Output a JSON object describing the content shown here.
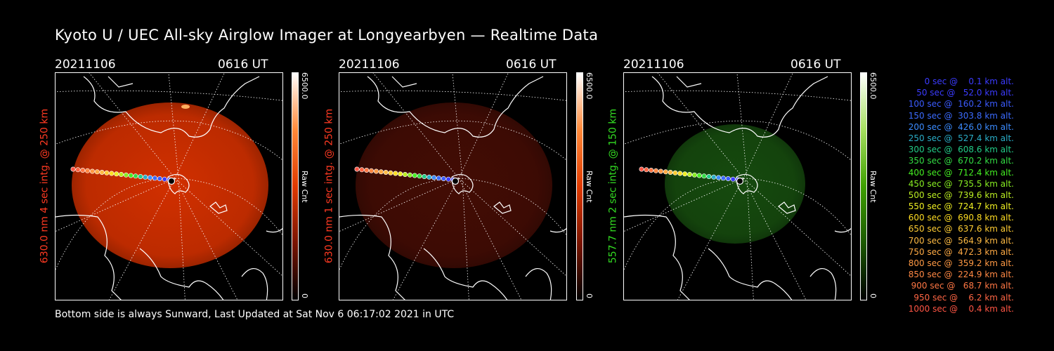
{
  "title": "Kyoto U / UEC All-sky Airglow Imager at Longyearbyen — Realtime Data",
  "panels": [
    {
      "date": "20211106",
      "time": "0616 UT",
      "ylabel": "630.0 nm 4 sec intg. @ 250 km",
      "label_color": "#ff3a22",
      "glow_color": "#ff3a00",
      "glow_opacity": 0.82,
      "colorbar_max": "6500.0",
      "colorbar_min": "0",
      "colorbar_unit": "Raw Cnt",
      "colorbar_colors": [
        "#000000",
        "#7a1400",
        "#e03a00",
        "#ff8a3a",
        "#ffffff"
      ]
    },
    {
      "date": "20211106",
      "time": "0616 UT",
      "ylabel": "630.0 nm 1 sec intg. @ 250 km",
      "label_color": "#ff3a22",
      "glow_color": "#7a1608",
      "glow_opacity": 0.55,
      "colorbar_max": "6500.0",
      "colorbar_min": "0",
      "colorbar_unit": "Raw Cnt",
      "colorbar_colors": [
        "#000000",
        "#7a1400",
        "#e03a00",
        "#ff8a3a",
        "#ffffff"
      ]
    },
    {
      "date": "20211106",
      "time": "0616 UT",
      "ylabel": "557.7 nm 2 sec intg. @ 150 km",
      "label_color": "#33dd22",
      "glow_color": "#1f6a14",
      "glow_opacity": 0.7,
      "colorbar_max": "6500.0",
      "colorbar_min": "0",
      "colorbar_unit": "Raw Cnt",
      "colorbar_colors": [
        "#000000",
        "#1c5a00",
        "#3fa000",
        "#a6e060",
        "#ffffff"
      ]
    }
  ],
  "footer": "Bottom side is always Sunward, Last Updated at Sat Nov  6 06:17:02 2021 in UTC",
  "legend": [
    {
      "text": "   0 sec @    0.1 km alt.",
      "color": "#3b3bff"
    },
    {
      "text": "  50 sec @   52.0 km alt.",
      "color": "#3b3bff"
    },
    {
      "text": " 100 sec @  160.2 km alt.",
      "color": "#3b5bff"
    },
    {
      "text": " 150 sec @  303.8 km alt.",
      "color": "#3b6bff"
    },
    {
      "text": " 200 sec @  426.0 km alt.",
      "color": "#3b8bff"
    },
    {
      "text": " 250 sec @  527.4 km alt.",
      "color": "#2aaec8"
    },
    {
      "text": " 300 sec @  608.6 km alt.",
      "color": "#22cc88"
    },
    {
      "text": " 350 sec @  670.2 km alt.",
      "color": "#33dd44"
    },
    {
      "text": " 400 sec @  712.4 km alt.",
      "color": "#44ee22"
    },
    {
      "text": " 450 sec @  735.5 km alt.",
      "color": "#88ee22"
    },
    {
      "text": " 500 sec @  739.6 km alt.",
      "color": "#bbee22"
    },
    {
      "text": " 550 sec @  724.7 km alt.",
      "color": "#eeee22"
    },
    {
      "text": " 600 sec @  690.8 km alt.",
      "color": "#ffdd22"
    },
    {
      "text": " 650 sec @  637.6 km alt.",
      "color": "#ffcc33"
    },
    {
      "text": " 700 sec @  564.9 km alt.",
      "color": "#ffbb44"
    },
    {
      "text": " 750 sec @  472.3 km alt.",
      "color": "#ffaa44"
    },
    {
      "text": " 800 sec @  359.2 km alt.",
      "color": "#ff9944"
    },
    {
      "text": " 850 sec @  224.9 km alt.",
      "color": "#ff8844"
    },
    {
      "text": " 900 sec @   68.7 km alt.",
      "color": "#ff7744"
    },
    {
      "text": " 950 sec @    6.2 km alt.",
      "color": "#ff6644"
    },
    {
      "text": "1000 sec @    0.4 km alt.",
      "color": "#ff5544"
    }
  ]
}
